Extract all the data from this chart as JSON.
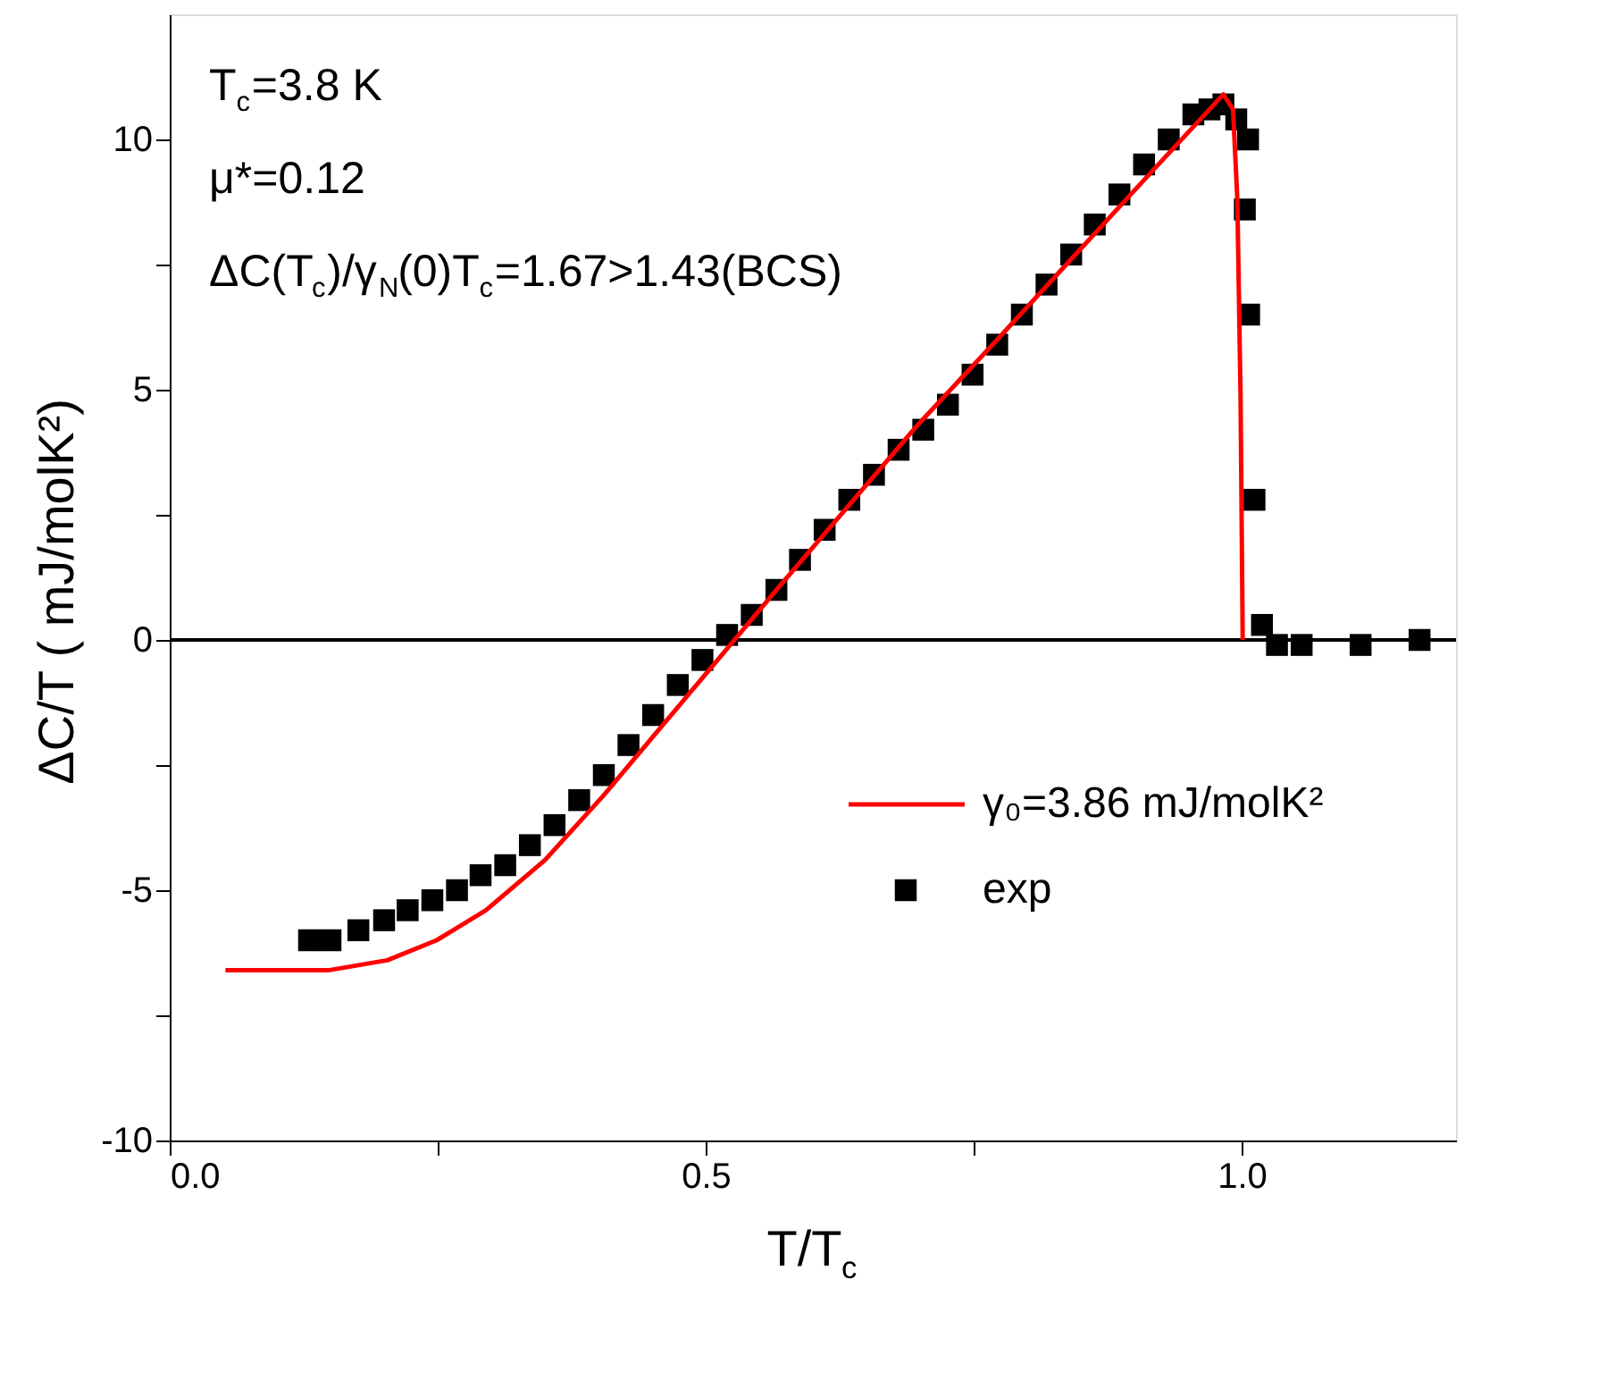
{
  "chart_data": {
    "type": "scatter",
    "xlabel": "T/T$_{c}$",
    "ylabel": "ΔC/T ( mJ/molK²)",
    "annotations": [
      "T$_{c}$=3.8 K",
      "μ*=0.12",
      "ΔC(T$_{c}$)/γ$_{N}$(0)T$_{c}$=1.67>1.43(BCS)"
    ],
    "xlim": [
      0,
      1.2
    ],
    "ylim": [
      -10,
      12.5
    ],
    "xticks": [
      {
        "value": 0,
        "label": "0.0"
      },
      {
        "value": 0.25,
        "label": null
      },
      {
        "value": 0.5,
        "label": "0.5"
      },
      {
        "value": 0.75,
        "label": null
      },
      {
        "value": 1,
        "label": "1.0"
      }
    ],
    "yticks": [
      -10,
      {
        "value": -7.5,
        "label": null
      },
      -5,
      {
        "value": -2.5,
        "label": null
      },
      0,
      {
        "value": 2.5,
        "label": null
      },
      5,
      {
        "value": 7.5,
        "label": null
      },
      10
    ],
    "grid": false,
    "legend": "bottom right",
    "ref_lines": [
      {
        "axis": "y",
        "value": 0,
        "color": "#000000"
      }
    ],
    "series": [
      {
        "name": "γ₀=3.86 mJ/molK²",
        "type": "line",
        "color": "#ff0000",
        "marker": "none",
        "x": [
          0.052,
          0.148,
          0.203,
          0.249,
          0.295,
          0.35,
          0.405,
          0.46,
          0.515,
          0.57,
          0.634,
          0.698,
          0.772,
          0.845,
          0.918,
          0.983,
          0.992,
          0.996,
          0.999,
          1.001
        ],
        "values": [
          -6.6,
          -6.6,
          -6.4,
          -6.0,
          -5.4,
          -4.4,
          -3.1,
          -1.7,
          -0.3,
          1.1,
          2.7,
          4.3,
          6.0,
          7.7,
          9.4,
          10.9,
          10.6,
          8.8,
          4.9,
          0
        ]
      },
      {
        "name": "exp",
        "type": "scatter",
        "color": "#000000",
        "marker": "square",
        "x": [
          0.13,
          0.15,
          0.176,
          0.2,
          0.222,
          0.245,
          0.268,
          0.29,
          0.313,
          0.336,
          0.359,
          0.382,
          0.405,
          0.428,
          0.451,
          0.474,
          0.497,
          0.52,
          0.543,
          0.566,
          0.588,
          0.611,
          0.634,
          0.657,
          0.68,
          0.703,
          0.726,
          0.749,
          0.772,
          0.795,
          0.818,
          0.841,
          0.863,
          0.886,
          0.909,
          0.932,
          0.955,
          0.97,
          0.983,
          0.995,
          1.006,
          1.003,
          1.007,
          1.012,
          1.019,
          1.033,
          1.056,
          1.111,
          1.166
        ],
        "values": [
          -6.0,
          -6.0,
          -5.8,
          -5.6,
          -5.4,
          -5.2,
          -5.0,
          -4.7,
          -4.5,
          -4.1,
          -3.7,
          -3.2,
          -2.7,
          -2.1,
          -1.5,
          -0.9,
          -0.4,
          0.1,
          0.5,
          1.0,
          1.6,
          2.2,
          2.8,
          3.3,
          3.8,
          4.2,
          4.7,
          5.3,
          5.9,
          6.5,
          7.1,
          7.7,
          8.3,
          8.9,
          9.5,
          10.0,
          10.5,
          10.6,
          10.7,
          10.4,
          10.0,
          8.6,
          6.5,
          2.8,
          0.3,
          -0.1,
          -0.1,
          -0.1,
          0.0
        ]
      }
    ]
  }
}
